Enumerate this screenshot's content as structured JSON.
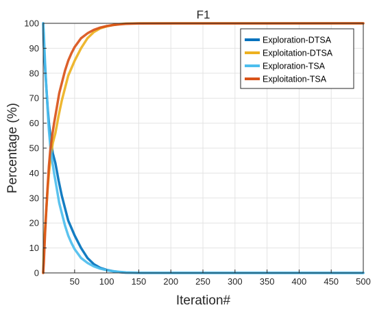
{
  "chart_data": {
    "type": "line",
    "title": "F1",
    "xlabel": "Iteration#",
    "ylabel": "Percentage (%)",
    "xlim": [
      1,
      500
    ],
    "ylim": [
      0,
      100
    ],
    "xticks": [
      50,
      100,
      150,
      200,
      250,
      300,
      350,
      400,
      450,
      500
    ],
    "yticks": [
      0,
      10,
      20,
      30,
      40,
      50,
      60,
      70,
      80,
      90,
      100
    ],
    "grid": true,
    "legend_position": "top-right",
    "series": [
      {
        "name": "Exploration-DTSA",
        "color": "#0072BD",
        "x": [
          1,
          2,
          4,
          6,
          8,
          10,
          13,
          16,
          20,
          25,
          30,
          35,
          40,
          45,
          50,
          60,
          70,
          80,
          90,
          100,
          110,
          120,
          130,
          140,
          150,
          500
        ],
        "y": [
          100,
          91,
          82,
          74,
          66,
          60,
          53,
          48,
          44,
          37,
          31,
          26,
          21,
          18,
          15,
          10,
          6,
          3.5,
          2,
          1.2,
          0.7,
          0.3,
          0.1,
          0.05,
          0,
          0
        ]
      },
      {
        "name": "Exploitation-DTSA",
        "color": "#EDB120",
        "x": [
          1,
          2,
          4,
          6,
          8,
          10,
          13,
          16,
          20,
          25,
          30,
          35,
          40,
          45,
          50,
          60,
          70,
          80,
          90,
          100,
          110,
          120,
          130,
          140,
          150,
          500
        ],
        "y": [
          0,
          9,
          18,
          26,
          34,
          40,
          47,
          52,
          56,
          63,
          69,
          74,
          79,
          82,
          85,
          90,
          94,
          96.5,
          98,
          98.8,
          99.3,
          99.7,
          99.9,
          99.95,
          100,
          100
        ]
      },
      {
        "name": "Exploration-TSA",
        "color": "#4DBEEE",
        "x": [
          1,
          2,
          4,
          6,
          8,
          10,
          12,
          15,
          18,
          22,
          26,
          30,
          35,
          40,
          45,
          50,
          60,
          70,
          80,
          90,
          100,
          110,
          120,
          130,
          150,
          500
        ],
        "y": [
          100,
          96,
          84,
          74,
          65,
          57,
          51,
          45,
          40,
          34,
          28,
          24,
          19,
          15,
          12,
          9.5,
          6,
          4,
          2.6,
          1.7,
          1.1,
          0.7,
          0.4,
          0.2,
          0.05,
          0
        ]
      },
      {
        "name": "Exploitation-TSA",
        "color": "#D95319",
        "x": [
          1,
          2,
          4,
          6,
          8,
          10,
          12,
          15,
          18,
          22,
          26,
          30,
          35,
          40,
          45,
          50,
          60,
          70,
          80,
          90,
          100,
          110,
          120,
          130,
          150,
          500
        ],
        "y": [
          0,
          4,
          16,
          26,
          35,
          43,
          49,
          55,
          60,
          66,
          72,
          76,
          81,
          85,
          88,
          90.5,
          94,
          96,
          97.4,
          98.3,
          98.9,
          99.3,
          99.6,
          99.8,
          99.95,
          100
        ]
      }
    ]
  }
}
